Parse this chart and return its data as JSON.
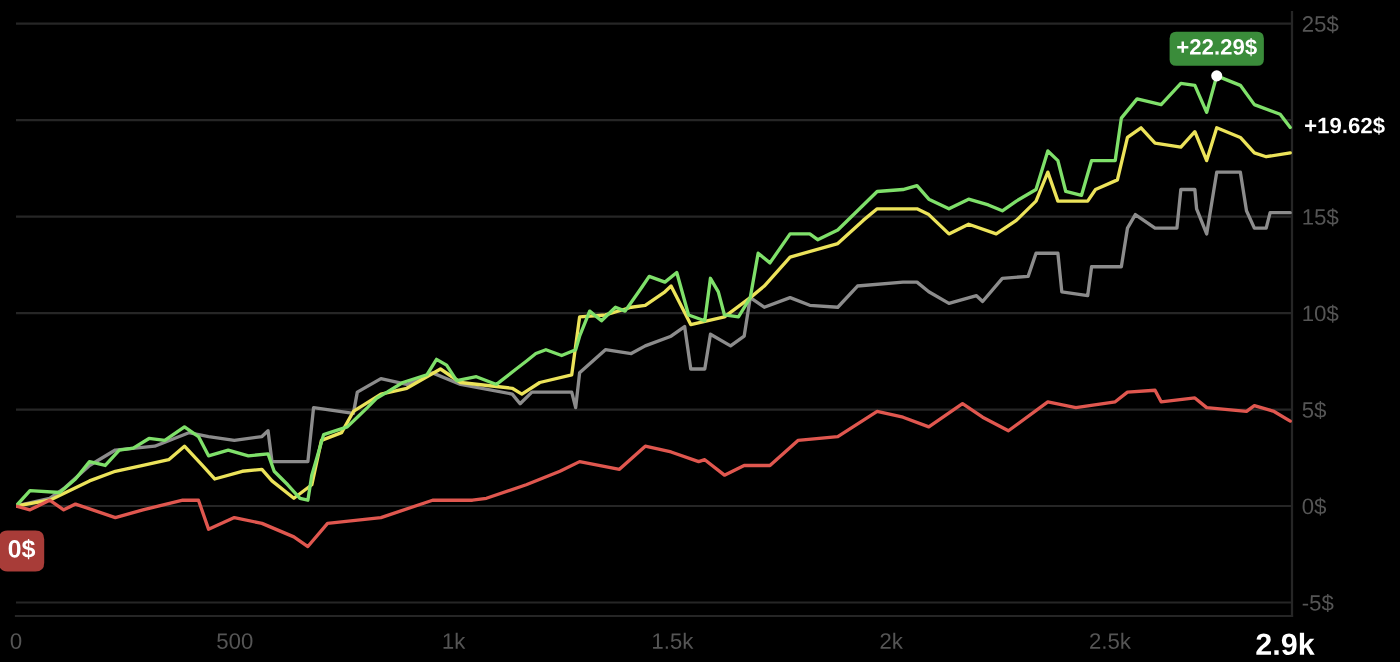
{
  "chart_data": {
    "type": "line",
    "xlim": [
      0,
      2916
    ],
    "ylim": [
      -5.7,
      25.6
    ],
    "xticks": [
      0,
      500,
      {
        "value": 1000,
        "label": "1k"
      },
      {
        "value": 1500,
        "label": "1.5k"
      },
      {
        "value": 2000,
        "label": "2k"
      },
      {
        "value": 2500,
        "label": "2.5k"
      },
      {
        "value": 2900,
        "label": "2.9k"
      }
    ],
    "yticks": [
      {
        "value": -5,
        "label": "-5$"
      },
      {
        "value": 0,
        "label": "0$"
      },
      {
        "value": 5,
        "label": "5$"
      },
      {
        "value": 10,
        "label": "10$"
      },
      {
        "value": 15,
        "label": "15$"
      },
      {
        "value": 20,
        "label": null
      },
      {
        "value": 25,
        "label": "25$"
      }
    ],
    "grid": "y",
    "marker": "none",
    "line_style": "solid",
    "series": [
      {
        "color": "#8c8c8c",
        "x": [
          0,
          77,
          109,
          168,
          227,
          317,
          395,
          440,
          499,
          562,
          576,
          585,
          667,
          680,
          771,
          780,
          834,
          893,
          952,
          1016,
          1134,
          1152,
          1179,
          1270,
          1279,
          1288,
          1347,
          1406,
          1438,
          1497,
          1528,
          1542,
          1574,
          1587,
          1633,
          1664,
          1678,
          1710,
          1769,
          1814,
          1878,
          1923,
          2027,
          2059,
          2086,
          2132,
          2195,
          2209,
          2254,
          2313,
          2331,
          2381,
          2390,
          2449,
          2458,
          2526,
          2540,
          2558,
          2603,
          2653,
          2662,
          2694,
          2698,
          2721,
          2744,
          2798,
          2812,
          2830,
          2857,
          2866,
          2912
        ],
        "values": [
          0,
          0.4,
          0.9,
          2.1,
          2.9,
          3.1,
          3.8,
          3.6,
          3.4,
          3.6,
          3.9,
          2.3,
          2.3,
          5.1,
          4.8,
          5.9,
          6.6,
          6.3,
          6.9,
          6.3,
          5.8,
          5.3,
          5.9,
          5.9,
          5.1,
          6.9,
          8.1,
          7.9,
          8.3,
          8.8,
          9.3,
          7.1,
          7.1,
          8.9,
          8.3,
          8.8,
          10.8,
          10.3,
          10.8,
          10.4,
          10.3,
          11.4,
          11.6,
          11.6,
          11.1,
          10.5,
          10.9,
          10.6,
          11.8,
          11.9,
          13.1,
          13.1,
          11.1,
          10.9,
          12.4,
          12.4,
          14.4,
          15.1,
          14.4,
          14.4,
          16.4,
          16.4,
          15.4,
          14.1,
          17.3,
          17.3,
          15.3,
          14.4,
          14.4,
          15.2,
          15.2
        ]
      },
      {
        "color": "#ece35a",
        "x": [
          0,
          77,
          168,
          227,
          290,
          349,
          385,
          426,
          454,
          517,
          562,
          585,
          635,
          676,
          698,
          744,
          771,
          834,
          893,
          970,
          1016,
          1134,
          1156,
          1197,
          1270,
          1288,
          1347,
          1406,
          1438,
          1483,
          1497,
          1542,
          1619,
          1678,
          1710,
          1769,
          1878,
          1936,
          1968,
          2059,
          2086,
          2132,
          2177,
          2240,
          2286,
          2331,
          2358,
          2381,
          2449,
          2467,
          2517,
          2540,
          2571,
          2603,
          2662,
          2694,
          2721,
          2744,
          2798,
          2830,
          2857,
          2912
        ],
        "values": [
          0,
          0.3,
          1.3,
          1.8,
          2.1,
          2.4,
          3.1,
          2.1,
          1.4,
          1.8,
          1.9,
          1.3,
          0.4,
          1.1,
          3.4,
          3.8,
          4.9,
          5.8,
          6.1,
          7.1,
          6.4,
          6.1,
          5.8,
          6.4,
          6.8,
          9.8,
          9.9,
          10.3,
          10.4,
          11.1,
          11.4,
          9.4,
          9.8,
          10.8,
          11.4,
          12.9,
          13.6,
          14.8,
          15.4,
          15.4,
          15.1,
          14.1,
          14.6,
          14.1,
          14.8,
          15.8,
          17.3,
          15.8,
          15.8,
          16.4,
          16.9,
          19.1,
          19.6,
          18.8,
          18.6,
          19.4,
          17.9,
          19.6,
          19.1,
          18.3,
          18.1,
          18.3
        ]
      },
      {
        "color": "#7fe06a",
        "x": [
          0,
          32,
          100,
          136,
          168,
          204,
          236,
          268,
          304,
          340,
          385,
          417,
          440,
          485,
          531,
          576,
          590,
          621,
          649,
          667,
          676,
          703,
          757,
          780,
          803,
          825,
          848,
          884,
          939,
          961,
          984,
          1007,
          1052,
          1098,
          1143,
          1166,
          1188,
          1211,
          1247,
          1279,
          1288,
          1311,
          1338,
          1370,
          1392,
          1429,
          1447,
          1483,
          1510,
          1537,
          1574,
          1587,
          1605,
          1619,
          1651,
          1678,
          1696,
          1723,
          1769,
          1814,
          1832,
          1878,
          1923,
          1968,
          2027,
          2059,
          2086,
          2132,
          2177,
          2222,
          2254,
          2286,
          2331,
          2358,
          2381,
          2399,
          2435,
          2458,
          2512,
          2526,
          2562,
          2617,
          2662,
          2694,
          2721,
          2744,
          2798,
          2830,
          2889,
          2912
        ],
        "values": [
          0,
          0.8,
          0.7,
          1.4,
          2.3,
          2.1,
          2.9,
          3.0,
          3.5,
          3.4,
          4.1,
          3.6,
          2.6,
          2.9,
          2.6,
          2.7,
          1.8,
          1.1,
          0.4,
          0.3,
          1.6,
          3.7,
          4.1,
          4.6,
          5.1,
          5.6,
          5.9,
          6.4,
          6.8,
          7.6,
          7.3,
          6.5,
          6.7,
          6.3,
          7.1,
          7.5,
          7.9,
          8.1,
          7.8,
          8.1,
          8.8,
          10.1,
          9.6,
          10.3,
          10.1,
          11.3,
          11.9,
          11.6,
          12.1,
          9.9,
          9.6,
          11.8,
          11.1,
          9.9,
          9.8,
          10.8,
          13.1,
          12.6,
          14.1,
          14.1,
          13.8,
          14.3,
          15.3,
          16.3,
          16.4,
          16.6,
          15.9,
          15.4,
          15.9,
          15.6,
          15.3,
          15.8,
          16.4,
          18.4,
          17.9,
          16.3,
          16.1,
          17.9,
          17.9,
          20.1,
          21.1,
          20.8,
          21.9,
          21.8,
          20.4,
          22.29,
          21.8,
          20.8,
          20.3,
          19.62
        ]
      },
      {
        "color": "#e0574f",
        "x": [
          0,
          32,
          77,
          109,
          136,
          227,
          290,
          381,
          417,
          440,
          499,
          562,
          635,
          667,
          712,
          834,
          952,
          1043,
          1075,
          1166,
          1243,
          1288,
          1379,
          1438,
          1497,
          1560,
          1574,
          1619,
          1664,
          1723,
          1787,
          1878,
          1968,
          2027,
          2086,
          2163,
          2209,
          2268,
          2358,
          2422,
          2512,
          2540,
          2603,
          2617,
          2694,
          2721,
          2812,
          2830,
          2875,
          2912
        ],
        "values": [
          0,
          -0.2,
          0.3,
          -0.2,
          0.1,
          -0.6,
          -0.2,
          0.3,
          0.3,
          -1.2,
          -0.6,
          -0.9,
          -1.6,
          -2.1,
          -0.9,
          -0.6,
          0.3,
          0.3,
          0.4,
          1.1,
          1.8,
          2.3,
          1.9,
          3.1,
          2.8,
          2.3,
          2.4,
          1.6,
          2.1,
          2.1,
          3.4,
          3.6,
          4.9,
          4.6,
          4.1,
          5.3,
          4.6,
          3.9,
          5.4,
          5.1,
          5.4,
          5.9,
          6.0,
          5.4,
          5.6,
          5.1,
          4.9,
          5.2,
          4.9,
          4.4
        ]
      }
    ],
    "annotations": [
      {
        "text": "+22.29$",
        "x": 2744,
        "y": 22.29
      },
      {
        "text": "+19.62$",
        "x": 2912,
        "y": 19.62
      },
      {
        "text": "0$",
        "x": 0,
        "y": 0
      }
    ]
  }
}
